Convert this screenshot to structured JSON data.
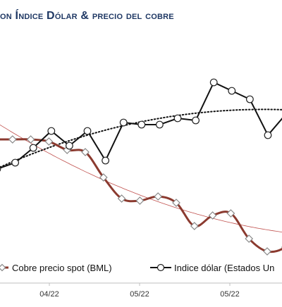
{
  "chart_data": {
    "type": "line",
    "title": "on Índice Dólar & precio del cobre",
    "x_tick_labels": [
      "04/22",
      "05/22",
      "05/22"
    ],
    "legend": {
      "placement": "bottom",
      "entries": [
        "Cobre precio spot (BML)",
        "Indice dólar (Estados Un"
      ]
    },
    "series": [
      {
        "name": "Cobre precio spot (BML)",
        "color": "#8b3a2f",
        "values": [
          58,
          58,
          58,
          57,
          53,
          52,
          40,
          30,
          29,
          31,
          28,
          17,
          22,
          23,
          11,
          5,
          7,
          16,
          22,
          13
        ]
      },
      {
        "name": "Indice dólar (Estados Un",
        "color": "#111111",
        "values": [
          44,
          47,
          54,
          62,
          55,
          62,
          48,
          66,
          65,
          65,
          68,
          67,
          85,
          81,
          77,
          60,
          70
        ]
      }
    ],
    "trendlines": [
      {
        "series": "Cobre precio spot (BML)",
        "style": "solid-thin",
        "color": "#c0504d"
      },
      {
        "series": "Indice dólar (Estados Un",
        "style": "dotted",
        "color": "#111111"
      }
    ],
    "ylim": [
      0,
      100
    ],
    "grid": false
  }
}
